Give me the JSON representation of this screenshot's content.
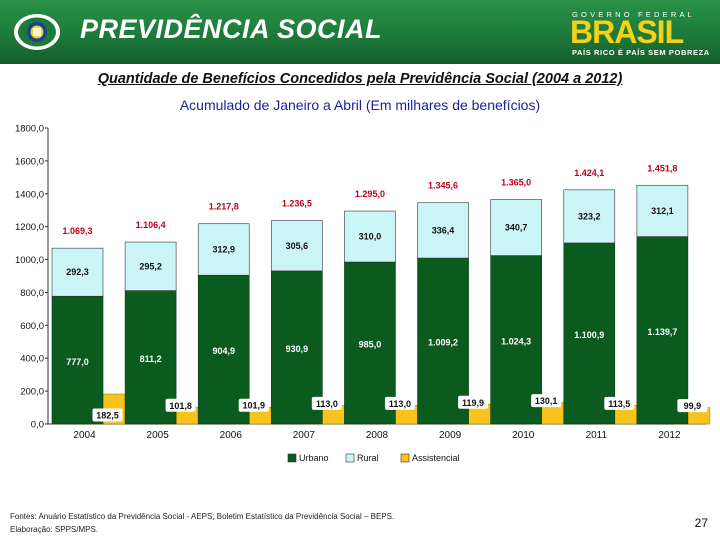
{
  "header": {
    "brand": "PREVIDÊNCIA SOCIAL",
    "gov_label": "GOVERNO FEDERAL",
    "gov_word": "BRASIL",
    "gov_slogan": "PAÍS RICO É PAÍS SEM POBREZA"
  },
  "colors": {
    "header_green": "#1d7b3a",
    "urbano": "#0b5a1e",
    "rural": "#ccf5f8",
    "assistencial": "#f7c31c"
  },
  "chart_data": {
    "type": "bar",
    "stacked": false,
    "title": "Quantidade de Benefícios Concedidos pela Previdência Social (2004 a 2012)",
    "subtitle": "Acumulado de Janeiro a  Abril (Em milhares de benefícios)",
    "categories": [
      "2004",
      "2005",
      "2006",
      "2007",
      "2008",
      "2009",
      "2010",
      "2011",
      "2012"
    ],
    "series": [
      {
        "name": "Urbano",
        "values": [
          777.0,
          811.2,
          904.9,
          930.9,
          985.0,
          1009.2,
          1024.3,
          1100.9,
          1139.7
        ],
        "labels": [
          "777,0",
          "811,2",
          "904,9",
          "930,9",
          "985,0",
          "1.009,2",
          "1.024,3",
          "1.100,9",
          "1.139,7"
        ]
      },
      {
        "name": "Rural",
        "values": [
          292.3,
          295.2,
          312.9,
          305.6,
          310.0,
          336.4,
          340.7,
          323.2,
          312.1
        ],
        "labels": [
          "292,3",
          "295,2",
          "312,9",
          "305,6",
          "310,0",
          "336,4",
          "340,7",
          "323,2",
          "312,1"
        ]
      },
      {
        "name": "Assistencial",
        "values": [
          182.5,
          101.8,
          101.9,
          113.0,
          113.0,
          119.9,
          130.1,
          113.5,
          99.9
        ],
        "labels": [
          "182,5",
          "101,8",
          "101,9",
          "113,0",
          "113,0",
          "119,9",
          "130,1",
          "113,5",
          "99,9"
        ]
      }
    ],
    "totals": [
      1069.3,
      1106.4,
      1217.8,
      1236.5,
      1295.0,
      1345.6,
      1365.0,
      1424.1,
      1451.8
    ],
    "total_labels": [
      "1.069,3",
      "1.106,4",
      "1.217,8",
      "1.236,5",
      "1.295,0",
      "1.345,6",
      "1.365,0",
      "1.424,1",
      "1.451,8"
    ],
    "y_ticks": [
      0,
      200,
      400,
      600,
      800,
      1000,
      1200,
      1400,
      1600,
      1800
    ],
    "y_tick_labels": [
      "0,0",
      "200,0",
      "400,0",
      "600,0",
      "800,0",
      "1000,0",
      "1200,0",
      "1400,0",
      "1600,0",
      "1800,0"
    ],
    "ylim": [
      0,
      1800
    ],
    "legend": [
      "Urbano",
      "Rural",
      "Assistencial"
    ],
    "legend_position": "bottom",
    "grid": false
  },
  "footer": {
    "source": "Fontes: Anuário Estatístico da Previdência Social - AEPS; Boletim Estatístico da Previdência Social – BEPS.",
    "credit": "Elaboração: SPPS/MPS.",
    "page_number": "27"
  }
}
